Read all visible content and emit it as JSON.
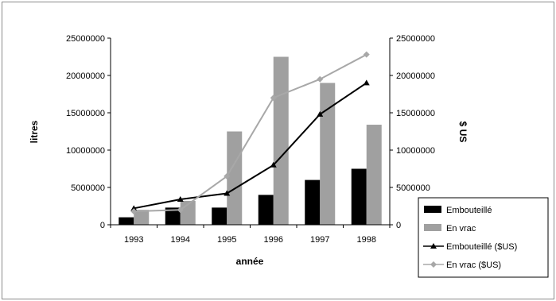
{
  "chart_data": {
    "type": "bar",
    "categories": [
      "1993",
      "1994",
      "1995",
      "1996",
      "1997",
      "1998"
    ],
    "xlabel": "année",
    "ylabel_left": "litres",
    "ylabel_right": "$ US",
    "ylim_left": [
      0,
      25000000
    ],
    "ylim_right": [
      0,
      25000000
    ],
    "yticks_left": [
      "0",
      "5000000",
      "10000000",
      "15000000",
      "20000000",
      "25000000"
    ],
    "yticks_right": [
      "0",
      "5000000",
      "10000000",
      "15000000",
      "20000000",
      "25000000"
    ],
    "grid": false,
    "legend_position": "bottom-right",
    "series": [
      {
        "name": "Embouteillé",
        "kind": "bar",
        "axis": "left",
        "color": "#000000",
        "values": [
          1000000,
          2300000,
          2300000,
          4000000,
          6000000,
          7500000
        ]
      },
      {
        "name": "En vrac",
        "kind": "bar",
        "axis": "left",
        "color": "#a0a0a0",
        "values": [
          2000000,
          3200000,
          12500000,
          22500000,
          19000000,
          13400000
        ]
      },
      {
        "name": "Embouteillé ($US)",
        "kind": "line",
        "axis": "right",
        "color": "#000000",
        "marker": "triangle",
        "values": [
          2200000,
          3400000,
          4200000,
          8000000,
          14800000,
          19000000
        ]
      },
      {
        "name": "En vrac ($US)",
        "kind": "line",
        "axis": "right",
        "color": "#a8a8a8",
        "marker": "diamond",
        "values": [
          1800000,
          2000000,
          6500000,
          17000000,
          19500000,
          22800000
        ]
      }
    ]
  }
}
